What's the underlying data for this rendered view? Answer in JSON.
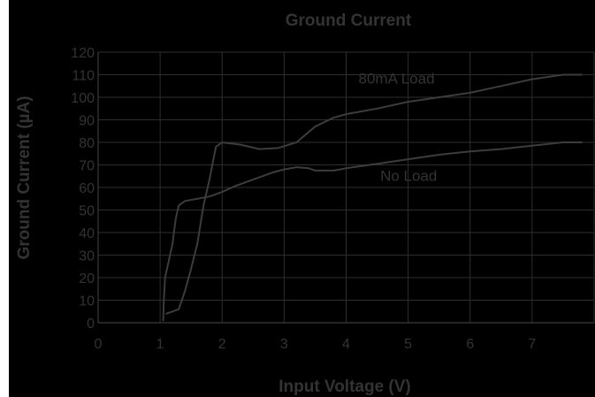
{
  "chart_data": {
    "type": "line",
    "title": "Ground Current",
    "xlabel": "Input Voltage (V)",
    "ylabel": "Ground Current (µA)",
    "xlim": [
      0,
      8
    ],
    "ylim": [
      0,
      120
    ],
    "x_ticks": [
      "0",
      "1",
      "2",
      "3",
      "4",
      "5",
      "6",
      "7"
    ],
    "y_ticks": [
      "0",
      "10",
      "20",
      "30",
      "40",
      "50",
      "60",
      "70",
      "80",
      "90",
      "100",
      "110",
      "120"
    ],
    "grid": true,
    "legend": "none",
    "series": [
      {
        "name": "80mA Load",
        "label_at": [
          4.2,
          106
        ],
        "points": [
          [
            1.1,
            4
          ],
          [
            1.2,
            5
          ],
          [
            1.3,
            6
          ],
          [
            1.4,
            14
          ],
          [
            1.5,
            24
          ],
          [
            1.6,
            35
          ],
          [
            1.7,
            52
          ],
          [
            1.8,
            64
          ],
          [
            1.9,
            78
          ],
          [
            2.0,
            80
          ],
          [
            2.3,
            79
          ],
          [
            2.6,
            77
          ],
          [
            2.9,
            77.5
          ],
          [
            3.2,
            80
          ],
          [
            3.5,
            87
          ],
          [
            3.8,
            91
          ],
          [
            4.0,
            92.5
          ],
          [
            4.5,
            95
          ],
          [
            5.0,
            98
          ],
          [
            5.5,
            100
          ],
          [
            6.0,
            102
          ],
          [
            6.5,
            105
          ],
          [
            7.0,
            108
          ],
          [
            7.5,
            110
          ],
          [
            7.8,
            110
          ]
        ]
      },
      {
        "name": "No Load",
        "label_at": [
          4.55,
          63
        ],
        "points": [
          [
            1.05,
            1
          ],
          [
            1.06,
            10
          ],
          [
            1.08,
            20
          ],
          [
            1.12,
            25
          ],
          [
            1.2,
            35
          ],
          [
            1.25,
            46
          ],
          [
            1.3,
            52
          ],
          [
            1.4,
            54
          ],
          [
            1.6,
            55
          ],
          [
            1.8,
            56
          ],
          [
            2.0,
            58
          ],
          [
            2.2,
            60.5
          ],
          [
            2.5,
            63.5
          ],
          [
            2.8,
            66.5
          ],
          [
            3.0,
            68
          ],
          [
            3.2,
            69
          ],
          [
            3.4,
            68.5
          ],
          [
            3.5,
            67.5
          ],
          [
            3.8,
            67.5
          ],
          [
            4.0,
            68.5
          ],
          [
            4.5,
            70.5
          ],
          [
            5.0,
            72.5
          ],
          [
            5.5,
            74.5
          ],
          [
            6.0,
            76
          ],
          [
            6.5,
            77
          ],
          [
            7.0,
            78.5
          ],
          [
            7.5,
            80
          ],
          [
            7.8,
            80
          ]
        ]
      }
    ]
  }
}
